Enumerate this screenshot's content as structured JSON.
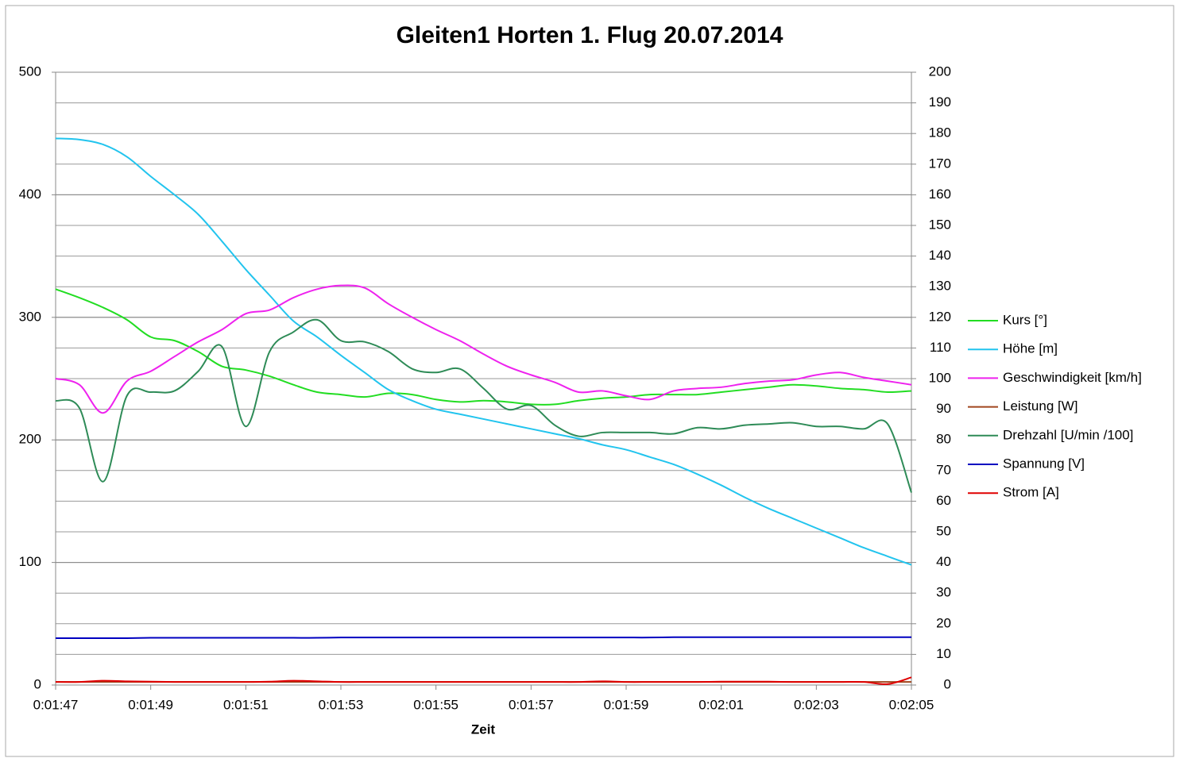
{
  "chart_data": {
    "type": "line",
    "title": "Gleiten1 Horten 1. Flug 20.07.2014",
    "x_label": "Zeit",
    "x": [
      107,
      107.5,
      108,
      108.5,
      109,
      109.5,
      110,
      110.5,
      111,
      111.5,
      112,
      112.5,
      113,
      113.5,
      114,
      114.5,
      115,
      115.5,
      116,
      116.5,
      117,
      117.5,
      118,
      118.5,
      119,
      119.5,
      120,
      120.5,
      121,
      121.5,
      122,
      122.5,
      123,
      123.5,
      124,
      124.5,
      125
    ],
    "xlim": [
      107,
      125
    ],
    "xticks": [
      {
        "value": 107,
        "label": "0:01:47"
      },
      {
        "value": 109,
        "label": "0:01:49"
      },
      {
        "value": 111,
        "label": "0:01:51"
      },
      {
        "value": 113,
        "label": "0:01:53"
      },
      {
        "value": 115,
        "label": "0:01:55"
      },
      {
        "value": 117,
        "label": "0:01:57"
      },
      {
        "value": 119,
        "label": "0:01:59"
      },
      {
        "value": 121,
        "label": "0:02:01"
      },
      {
        "value": 123,
        "label": "0:02:03"
      },
      {
        "value": 125,
        "label": "0:02:05"
      }
    ],
    "ylim": [
      0,
      500
    ],
    "yticks": [
      0,
      100,
      200,
      300,
      400,
      500
    ],
    "y2lim": [
      0,
      200
    ],
    "y2ticks": [
      0,
      10,
      20,
      30,
      40,
      50,
      60,
      70,
      80,
      90,
      100,
      110,
      120,
      130,
      140,
      150,
      160,
      170,
      180,
      190,
      200
    ],
    "grid": true,
    "legend": "right",
    "series": [
      {
        "name": "Kurs [°]",
        "color": "#22dd22",
        "axis": "y",
        "values": [
          323,
          316,
          308,
          298,
          284,
          281,
          272,
          260,
          257,
          252,
          245,
          239,
          237,
          235,
          238,
          237,
          233,
          231,
          232,
          231,
          229,
          229,
          232,
          234,
          235,
          237,
          237,
          237,
          239,
          241,
          243,
          245,
          244,
          242,
          241,
          239,
          240
        ]
      },
      {
        "name": "Höhe [m]",
        "color": "#22c4ee",
        "axis": "y",
        "values": [
          446,
          445,
          441,
          431,
          415,
          400,
          384,
          362,
          339,
          318,
          297,
          284,
          269,
          255,
          241,
          232,
          225,
          221,
          217,
          213,
          209,
          205,
          201,
          196,
          192,
          186,
          180,
          172,
          163,
          153,
          144,
          136,
          128,
          120,
          112,
          105,
          98
        ]
      },
      {
        "name": "Geschwindigkeit [km/h]",
        "color": "#ee22ee",
        "axis": "y2",
        "values": [
          100,
          98,
          88.8,
          99.2,
          102.4,
          107.2,
          112,
          116,
          121.2,
          122.4,
          126.4,
          129.2,
          130.4,
          129.6,
          124.4,
          120,
          116,
          112.4,
          108,
          104,
          101.2,
          98.8,
          95.6,
          96,
          94.4,
          93.2,
          96,
          96.8,
          97.2,
          98.4,
          99.2,
          99.6,
          101.2,
          102,
          100.4,
          99.2,
          98
        ]
      },
      {
        "name": "Leistung [W]",
        "color": "#a0461e",
        "axis": "y2",
        "values": [
          1,
          1,
          1,
          1,
          1,
          1,
          1,
          1,
          1,
          1,
          1,
          1,
          1,
          1,
          1,
          1,
          1,
          1,
          1,
          1,
          1,
          1,
          1,
          1,
          1,
          1,
          1,
          1,
          1,
          1,
          1,
          1,
          1,
          1,
          1,
          1,
          1
        ]
      },
      {
        "name": "Drehzahl [U/min /100]",
        "color": "#2e8b57",
        "axis": "y2",
        "values": [
          92.8,
          90.4,
          66.4,
          94.4,
          95.6,
          96,
          102.4,
          110.4,
          84.4,
          108.8,
          115.2,
          119.2,
          112.4,
          112,
          108.8,
          103.2,
          102,
          103.2,
          96.8,
          90,
          91.2,
          84.8,
          81.2,
          82.4,
          82.4,
          82.4,
          82,
          84,
          83.6,
          84.8,
          85.2,
          85.6,
          84.4,
          84.4,
          83.6,
          85.2,
          62.8
        ]
      },
      {
        "name": "Spannung [V]",
        "color": "#0000c0",
        "axis": "y2",
        "values": [
          15.3,
          15.3,
          15.3,
          15.3,
          15.4,
          15.4,
          15.4,
          15.4,
          15.4,
          15.4,
          15.4,
          15.4,
          15.5,
          15.5,
          15.5,
          15.5,
          15.5,
          15.5,
          15.5,
          15.5,
          15.5,
          15.5,
          15.5,
          15.5,
          15.5,
          15.5,
          15.6,
          15.6,
          15.6,
          15.6,
          15.6,
          15.6,
          15.6,
          15.6,
          15.6,
          15.6,
          15.6
        ]
      },
      {
        "name": "Strom [A]",
        "color": "#e00000",
        "axis": "y2",
        "values": [
          1,
          1,
          1.4,
          1.2,
          1.1,
          1,
          1,
          1,
          1,
          1.1,
          1.4,
          1.2,
          1,
          1,
          1,
          1,
          1,
          1,
          1,
          1,
          1,
          1,
          1,
          1.2,
          1,
          1,
          1,
          1,
          1.1,
          1.1,
          1.1,
          1,
          1,
          1,
          1,
          0.3,
          2.5
        ]
      }
    ]
  }
}
